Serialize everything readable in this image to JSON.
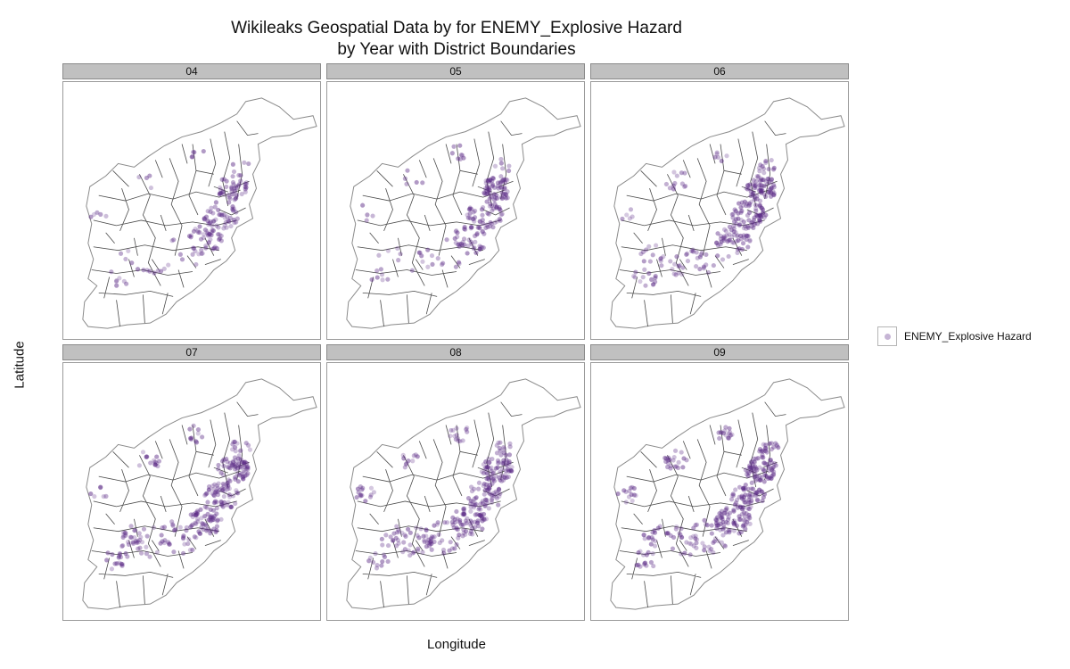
{
  "title_line1": "Wikileaks Geospatial Data by for ENEMY_Explosive Hazard",
  "title_line2": "by Year with District Boundaries",
  "x_axis_label": "Longitude",
  "y_axis_label": "Latitude",
  "legend": {
    "label": "ENEMY_Explosive Hazard",
    "color": "#5b2a86",
    "icon": "circle-point"
  },
  "colors": {
    "point": "#5b2a86",
    "boundary": "#4a4a4a",
    "strip": "#c0c0c0"
  },
  "facets": [
    {
      "label": "04",
      "density": 0.35
    },
    {
      "label": "05",
      "density": 0.45
    },
    {
      "label": "06",
      "density": 0.75
    },
    {
      "label": "07",
      "density": 0.85
    },
    {
      "label": "08",
      "density": 0.9
    },
    {
      "label": "09",
      "density": 1.0
    }
  ]
}
